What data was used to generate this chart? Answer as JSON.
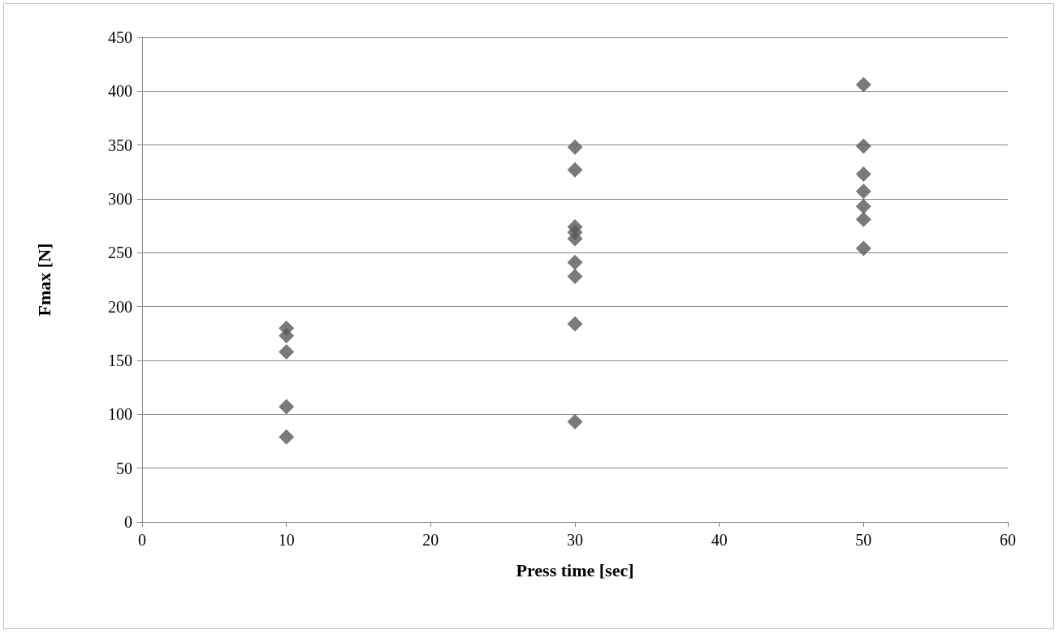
{
  "chart_data": {
    "type": "scatter",
    "xlabel": "Press time [sec]",
    "ylabel": "Fmax [N]",
    "x": [
      10,
      10,
      10,
      10,
      10,
      30,
      30,
      30,
      30,
      30,
      30,
      30,
      30,
      30,
      50,
      50,
      50,
      50,
      50,
      50,
      50
    ],
    "values": [
      180,
      173,
      158,
      107,
      79,
      348,
      327,
      274,
      269,
      263,
      241,
      228,
      184,
      93,
      406,
      349,
      323,
      307,
      293,
      281,
      254
    ],
    "color": "#595959",
    "marker": "diamond",
    "grid": "y",
    "xlim": [
      0,
      60
    ],
    "xticks": [
      0,
      10,
      20,
      30,
      40,
      50,
      60
    ],
    "ylim": [
      0,
      450
    ],
    "yticks": [
      0,
      50,
      100,
      150,
      200,
      250,
      300,
      350,
      400,
      450
    ]
  }
}
